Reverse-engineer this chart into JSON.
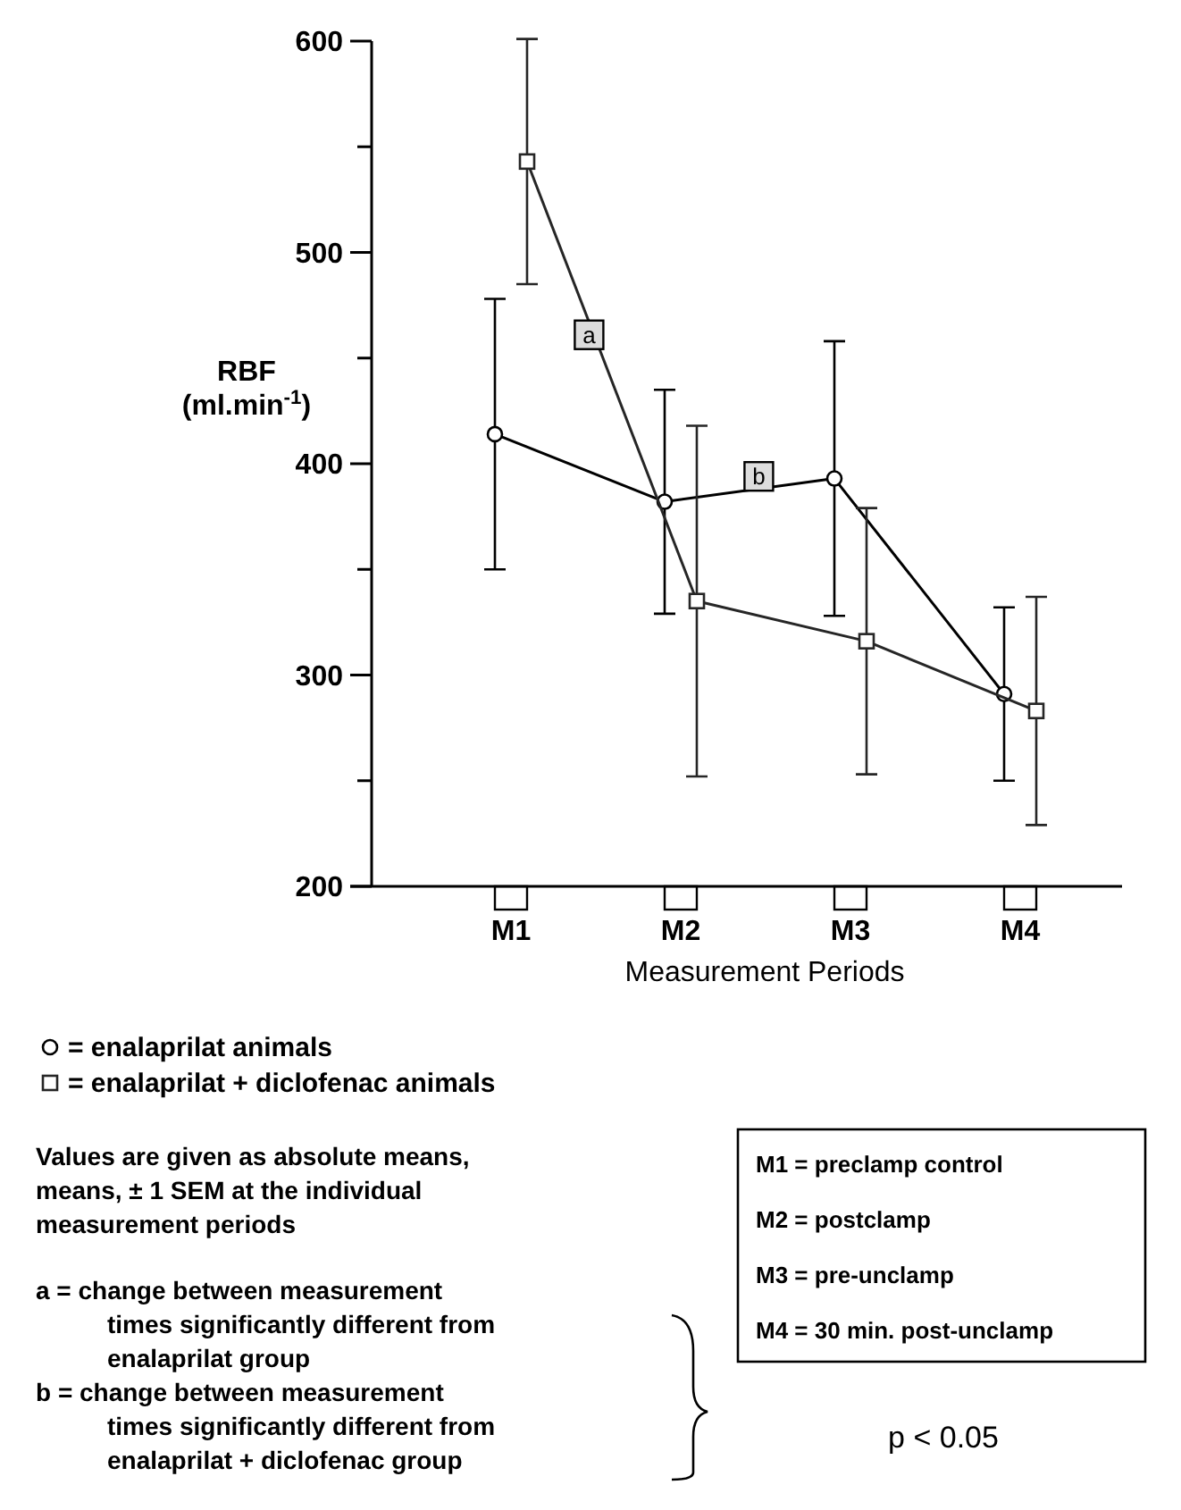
{
  "chart_data": {
    "type": "line",
    "xlabel": "Measurement Periods",
    "ylabel": "RBF (ml.min$^{-1}$)",
    "categories": [
      "M1",
      "M2",
      "M3",
      "M4"
    ],
    "ylim": [
      200,
      600
    ],
    "yticks": [
      200,
      {
        "value": 250,
        "label": null
      },
      300,
      {
        "value": 350,
        "label": null
      },
      400,
      {
        "value": 450,
        "label": null
      },
      500,
      {
        "value": 550,
        "label": null
      },
      600
    ],
    "grid": false,
    "legend": "bottom left",
    "line_style": "solid",
    "series": [
      {
        "name": "= enalaprilat animals",
        "color": "#000000",
        "marker": "circle",
        "values": [
          414,
          382,
          393,
          291
        ],
        "errors": [
          64,
          53,
          65,
          41
        ]
      },
      {
        "name": "= enalaprilat + diclofenac animals",
        "color": "#262626",
        "marker": "square",
        "values": [
          543,
          335,
          316,
          283
        ],
        "errors": [
          58,
          83,
          63,
          54
        ]
      }
    ],
    "annotations": [
      {
        "text": "a",
        "y": 461
      },
      {
        "text": "b",
        "y": 394
      },
      "Values are given as absolute means, means, ± 1 SEM at the individual measurement periods",
      "a =  change between measurement times significantly different from enalaprilat group",
      "b = change between measurement times significantly different from enalaprilat + diclofenac group",
      "M1 = preclamp control",
      "M2 = postclamp",
      "M3 = pre-unclamp",
      "M4 = 30 min. post-unclamp",
      "p < 0.05"
    ]
  }
}
